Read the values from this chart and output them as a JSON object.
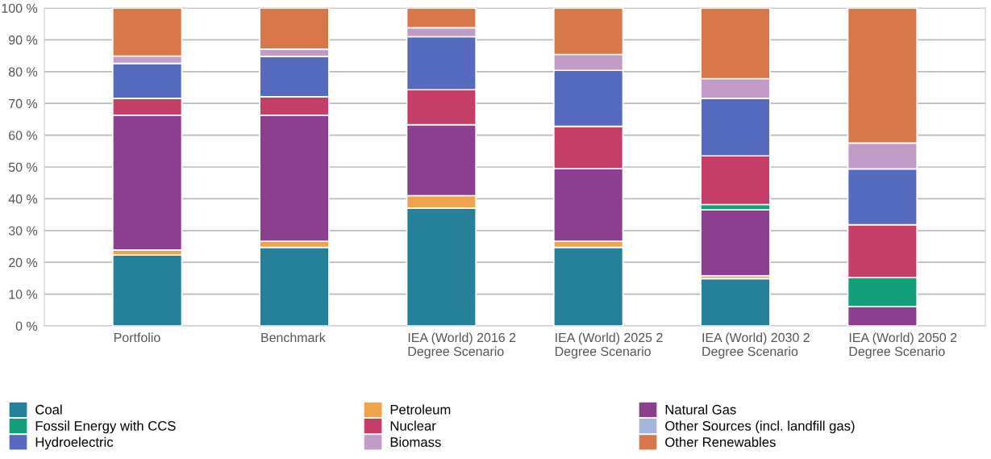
{
  "chart_data": {
    "type": "bar",
    "stacked": true,
    "categories": [
      "Portfolio",
      "Benchmark",
      "IEA (World) 2016 2\nDegree Scenario",
      "IEA (World) 2025 2\nDegree Scenario",
      "IEA (World) 2030 2\nDegree Scenario",
      "IEA (World) 2050 2\nDegree Scenario"
    ],
    "series": [
      {
        "name": "Coal",
        "color": "#25809a",
        "values": [
          22.3,
          24.7,
          37.1,
          24.7,
          14.9,
          null
        ]
      },
      {
        "name": "Petroleum",
        "color": "#f0a34a",
        "values": [
          1.6,
          1.9,
          3.9,
          1.9,
          0.9,
          null
        ]
      },
      {
        "name": "Natural Gas",
        "color": "#8c3f8f",
        "values": [
          42.4,
          39.7,
          22.3,
          22.9,
          20.7,
          6.1
        ]
      },
      {
        "name": "Fossil Energy with CCS",
        "color": "#12a07a",
        "values": [
          null,
          null,
          null,
          null,
          1.7,
          9.1
        ]
      },
      {
        "name": "Nuclear",
        "color": "#c43e67",
        "values": [
          5.3,
          5.8,
          11.0,
          13.3,
          15.3,
          16.6
        ]
      },
      {
        "name": "Other Sources (incl. landfill gas)",
        "color": "#a6b4e0",
        "values": [
          null,
          null,
          null,
          null,
          null,
          null
        ]
      },
      {
        "name": "Hydroelectric",
        "color": "#566bbd",
        "values": [
          11.0,
          12.7,
          16.7,
          17.6,
          18.1,
          17.6
        ]
      },
      {
        "name": "Biomass",
        "color": "#c29bc9",
        "values": [
          2.3,
          2.3,
          2.8,
          5.0,
          6.2,
          8.1
        ]
      },
      {
        "name": "Other Renewables",
        "color": "#d8774a",
        "values": [
          15.1,
          12.9,
          6.2,
          14.6,
          22.2,
          42.5
        ]
      }
    ],
    "ylim": [
      0,
      100
    ],
    "yticks": [
      {
        "value": 0,
        "label": "0 %"
      },
      {
        "value": 10,
        "label": "10 %"
      },
      {
        "value": 20,
        "label": "20 %"
      },
      {
        "value": 30,
        "label": "30 %"
      },
      {
        "value": 40,
        "label": "40 %"
      },
      {
        "value": 50,
        "label": "50 %"
      },
      {
        "value": 60,
        "label": "60 %"
      },
      {
        "value": 70,
        "label": "70 %"
      },
      {
        "value": 80,
        "label": "80 %"
      },
      {
        "value": 90,
        "label": "90 %"
      },
      {
        "value": 100,
        "label": "100 %"
      }
    ],
    "grid": "y",
    "legend": "bottom"
  }
}
